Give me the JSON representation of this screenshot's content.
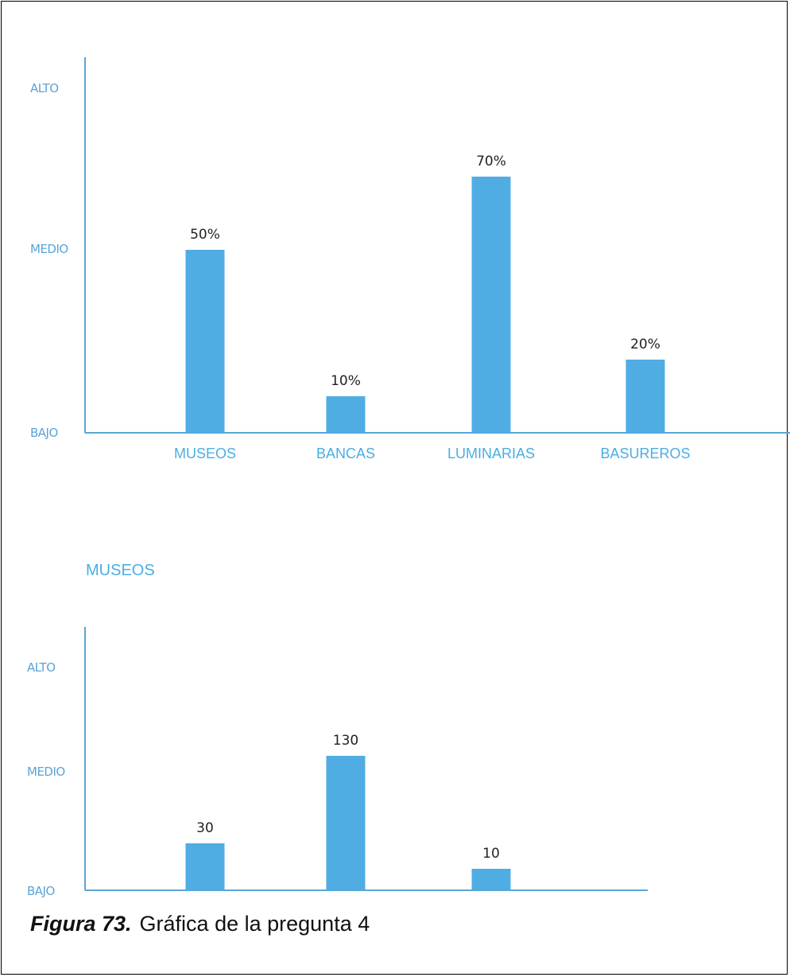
{
  "chart_data": [
    {
      "type": "bar",
      "title": "",
      "categories": [
        "MUSEOS",
        "BANCAS",
        "LUMINARIAS",
        "BASUREROS"
      ],
      "values": [
        50,
        10,
        70,
        20
      ],
      "value_labels": [
        "50%",
        "10%",
        "70%",
        "20%"
      ],
      "y_ticks": [
        "BAJO",
        "MEDIO",
        "ALTO"
      ],
      "bar_color": "#4fade3",
      "axis_color": "#5ba4d6",
      "grid": false
    },
    {
      "type": "bar",
      "title": "MUSEOS",
      "categories": [
        "",
        "",
        ""
      ],
      "values": [
        30,
        130,
        10
      ],
      "value_labels": [
        "30",
        "130",
        "10"
      ],
      "y_ticks": [
        "BAJO",
        "MEDIO",
        "ALTO"
      ],
      "bar_color": "#4fade3",
      "axis_color": "#5ba4d6",
      "grid": false
    }
  ],
  "caption": {
    "label": "Figura 73.",
    "text": "Gráfica de la pregunta 4"
  }
}
